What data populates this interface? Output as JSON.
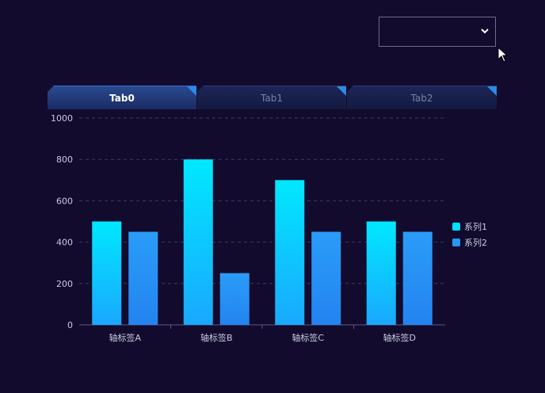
{
  "tabs": [
    {
      "label": "Tab0",
      "active": true
    },
    {
      "label": "Tab1",
      "active": false
    },
    {
      "label": "Tab2",
      "active": false
    }
  ],
  "dropdown": {
    "value": ""
  },
  "colors": {
    "series1": "#00e0ff",
    "series2": "#2a95f5",
    "tab_corner": "#2d8ae6"
  },
  "chart_data": {
    "type": "bar",
    "categories": [
      "轴标签A",
      "轴标签B",
      "轴标签C",
      "轴标签D"
    ],
    "series": [
      {
        "name": "系列1",
        "values": [
          500,
          800,
          700,
          500
        ]
      },
      {
        "name": "系列2",
        "values": [
          450,
          250,
          450,
          450
        ]
      }
    ],
    "ylim": [
      0,
      1000
    ],
    "yticks": [
      0,
      200,
      400,
      600,
      800,
      1000
    ],
    "grid": true,
    "legend_position": "right"
  }
}
